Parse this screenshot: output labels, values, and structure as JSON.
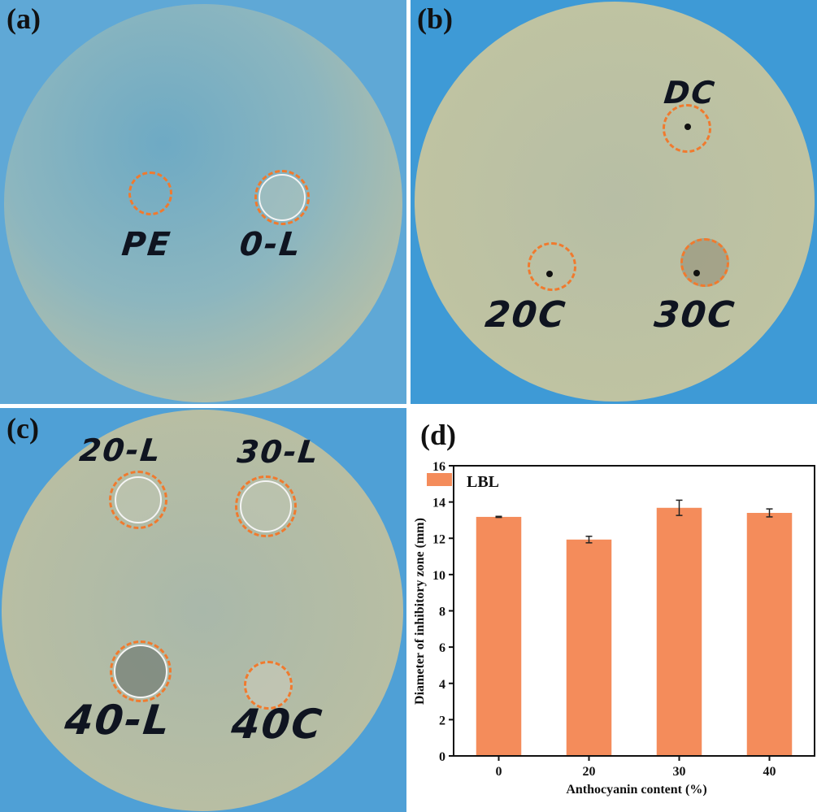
{
  "panels": {
    "a": {
      "label": "(a)",
      "marks": [
        "PE",
        "0-L"
      ]
    },
    "b": {
      "label": "(b)",
      "marks": [
        "DC",
        "20C",
        "30C"
      ]
    },
    "c": {
      "label": "(c)",
      "marks": [
        "20-L",
        "30-L",
        "40-L",
        "40C"
      ]
    },
    "d": {
      "label": "(d)"
    }
  },
  "colors": {
    "bar": "#f48c5b",
    "ring": "#f07a2e",
    "agar_blue": "#7fb4c8",
    "agar_yellow": "#c9c79a"
  },
  "chart_data": {
    "type": "bar",
    "categories": [
      "0",
      "20",
      "30",
      "40"
    ],
    "series": [
      {
        "name": "LBL",
        "values": [
          13.18,
          11.93,
          13.68,
          13.4
        ],
        "errors": [
          0.03,
          0.18,
          0.42,
          0.22
        ]
      }
    ],
    "xlabel": "Anthocyanin content (%)",
    "ylabel": "Diameter of inhibitory zone (mm)",
    "ylim": [
      0,
      16
    ],
    "yticks": [
      "0",
      "2",
      "4",
      "6",
      "8",
      "10",
      "12",
      "14",
      "16"
    ],
    "grid": false,
    "legend": "top-left"
  }
}
